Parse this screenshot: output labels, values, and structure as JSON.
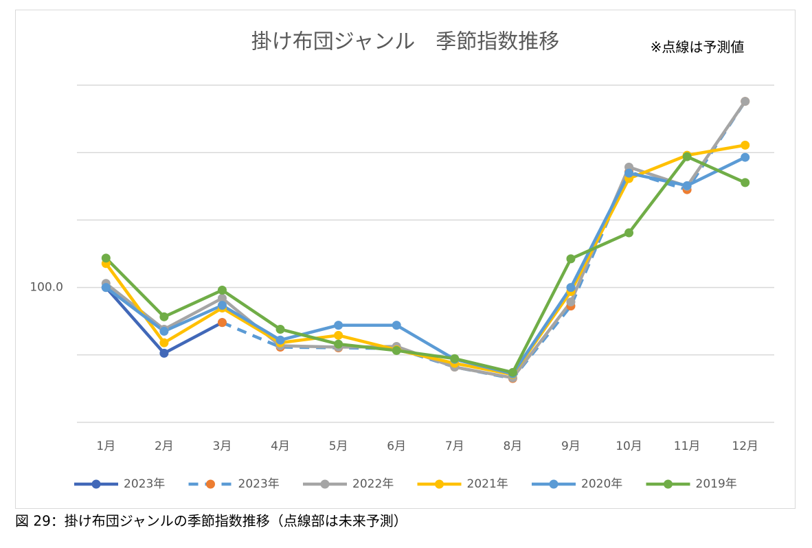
{
  "chart_data": {
    "type": "line",
    "title": "掛け布団ジャンル　季節指数推移",
    "annotation": "※点線は予測値",
    "caption": "図 29：掛け布団ジャンルの季節指数推移（点線部は未来予測）",
    "categories": [
      "1月",
      "2月",
      "3月",
      "4月",
      "5月",
      "6月",
      "7月",
      "8月",
      "9月",
      "10月",
      "11月",
      "12月"
    ],
    "ylim": [
      60,
      160
    ],
    "yticks": [
      {
        "value": 100,
        "label": "100.0"
      }
    ],
    "ygrid": [
      60,
      80,
      100,
      120,
      140,
      160
    ],
    "grid": true,
    "legend": "bottom",
    "series": [
      {
        "name": "2023年",
        "color": "#4168b8",
        "marker_color": "#4168b8",
        "dashed": false,
        "values": [
          100.0,
          80.5,
          89.6,
          null,
          null,
          null,
          null,
          null,
          null,
          null,
          null,
          null
        ]
      },
      {
        "name": "2023年",
        "color": "#5b9bd5",
        "marker_color": "#ed7d31",
        "dashed": true,
        "values": [
          null,
          null,
          89.6,
          82.3,
          82.1,
          81.9,
          76.4,
          73.0,
          94.5,
          134.3,
          129.0,
          155.2
        ]
      },
      {
        "name": "2022年",
        "color": "#a5a5a5",
        "marker_color": "#a5a5a5",
        "dashed": false,
        "values": [
          101.2,
          87.6,
          96.8,
          82.7,
          82.3,
          82.5,
          76.4,
          73.2,
          95.7,
          135.7,
          130.0,
          155.2
        ]
      },
      {
        "name": "2021年",
        "color": "#ffc000",
        "marker_color": "#ffc000",
        "dashed": false,
        "values": [
          107.1,
          83.6,
          93.9,
          83.6,
          85.8,
          81.5,
          77.5,
          74.2,
          98.8,
          132.3,
          139.2,
          142.2
        ]
      },
      {
        "name": "2020年",
        "color": "#5b9bd5",
        "marker_color": "#5b9bd5",
        "dashed": false,
        "values": [
          100.0,
          87.0,
          94.7,
          84.4,
          88.8,
          88.8,
          78.7,
          74.4,
          100.0,
          133.9,
          130.2,
          138.6
        ]
      },
      {
        "name": "2019年",
        "color": "#70ad47",
        "marker_color": "#70ad47",
        "dashed": false,
        "values": [
          108.7,
          91.3,
          99.2,
          87.6,
          83.2,
          81.3,
          78.9,
          74.8,
          108.5,
          116.2,
          138.8,
          131.1
        ]
      }
    ]
  }
}
